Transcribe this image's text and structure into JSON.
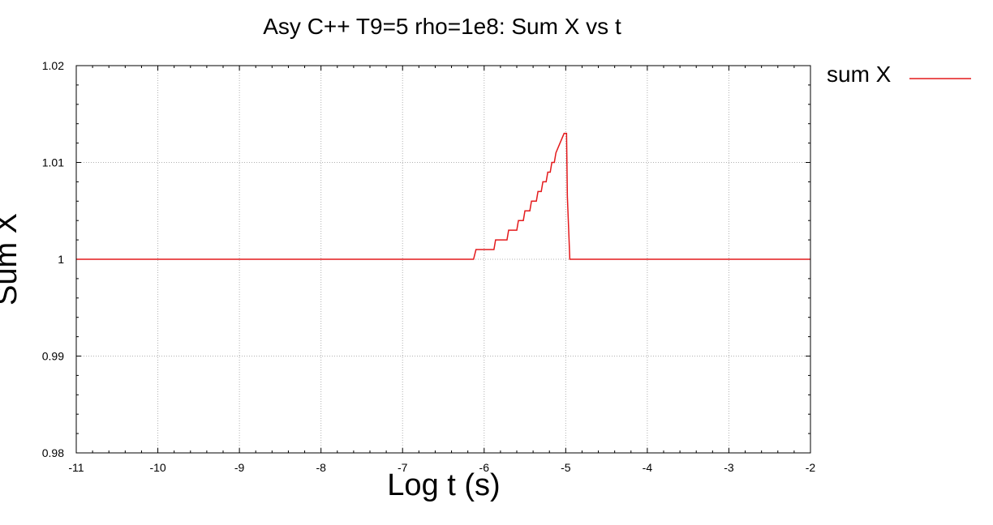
{
  "chart_data": {
    "type": "line",
    "title": "Asy C++ T9=5 rho=1e8: Sum X  vs t",
    "xlabel": "Log t (s)",
    "ylabel": "Sum X",
    "xlim": [
      -11,
      -2
    ],
    "ylim": [
      0.98,
      1.02
    ],
    "x_ticks": [
      -11,
      -10,
      -9,
      -8,
      -7,
      -6,
      -5,
      -4,
      -3,
      -2
    ],
    "x_tick_labels": [
      "-11",
      "-10",
      "-9",
      "-8",
      "-7",
      "-6",
      "-5",
      "-4",
      "-3",
      "-2"
    ],
    "y_ticks": [
      0.98,
      0.99,
      1.0,
      1.01,
      1.02
    ],
    "y_tick_labels": [
      "0.98",
      "0.99",
      "1",
      "1.01",
      "1.02"
    ],
    "grid": true,
    "legend_position": "top-right-outside",
    "series": [
      {
        "name": "sum X",
        "color": "#e41a1c",
        "points": [
          [
            -11,
            1.0
          ],
          [
            -6.13,
            1.0
          ],
          [
            -6.1,
            1.001
          ],
          [
            -5.88,
            1.001
          ],
          [
            -5.86,
            1.002
          ],
          [
            -5.72,
            1.002
          ],
          [
            -5.7,
            1.003
          ],
          [
            -5.6,
            1.003
          ],
          [
            -5.58,
            1.004
          ],
          [
            -5.52,
            1.004
          ],
          [
            -5.5,
            1.005
          ],
          [
            -5.44,
            1.005
          ],
          [
            -5.42,
            1.006
          ],
          [
            -5.36,
            1.006
          ],
          [
            -5.34,
            1.007
          ],
          [
            -5.3,
            1.007
          ],
          [
            -5.28,
            1.008
          ],
          [
            -5.24,
            1.008
          ],
          [
            -5.22,
            1.009
          ],
          [
            -5.19,
            1.009
          ],
          [
            -5.17,
            1.01
          ],
          [
            -5.14,
            1.01
          ],
          [
            -5.12,
            1.011
          ],
          [
            -5.07,
            1.012
          ],
          [
            -5.02,
            1.013
          ],
          [
            -4.99,
            1.013
          ],
          [
            -4.98,
            1.0065
          ],
          [
            -4.96,
            1.0022
          ],
          [
            -4.95,
            1.0
          ],
          [
            -2,
            1.0
          ]
        ]
      }
    ]
  }
}
